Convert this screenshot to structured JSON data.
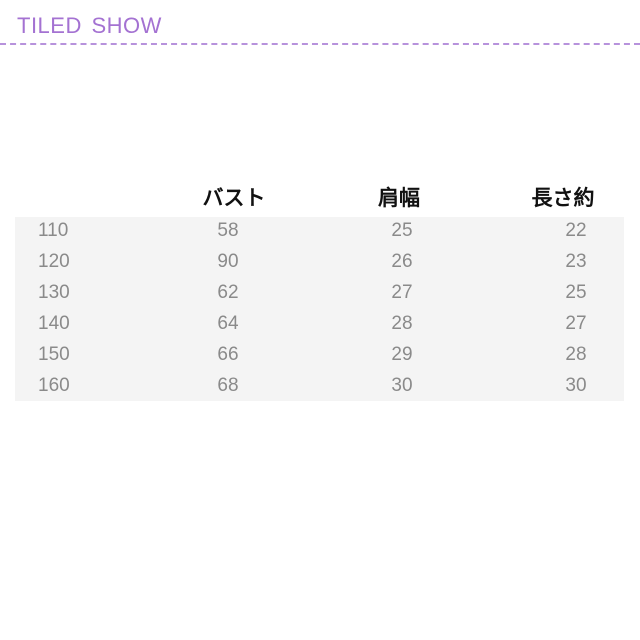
{
  "header": {
    "title": "TILED SHOW"
  },
  "colors": {
    "accent": "#a472d2",
    "table_bg": "#f4f4f4",
    "cell_text": "#8a8a8a"
  },
  "table": {
    "columns": [
      "",
      "バスト",
      "肩幅",
      "長さ約"
    ],
    "rows": [
      [
        "110",
        "58",
        "25",
        "22"
      ],
      [
        "120",
        "90",
        "26",
        "23"
      ],
      [
        "130",
        "62",
        "27",
        "25"
      ],
      [
        "140",
        "64",
        "28",
        "27"
      ],
      [
        "150",
        "66",
        "29",
        "28"
      ],
      [
        "160",
        "68",
        "30",
        "30"
      ]
    ]
  }
}
